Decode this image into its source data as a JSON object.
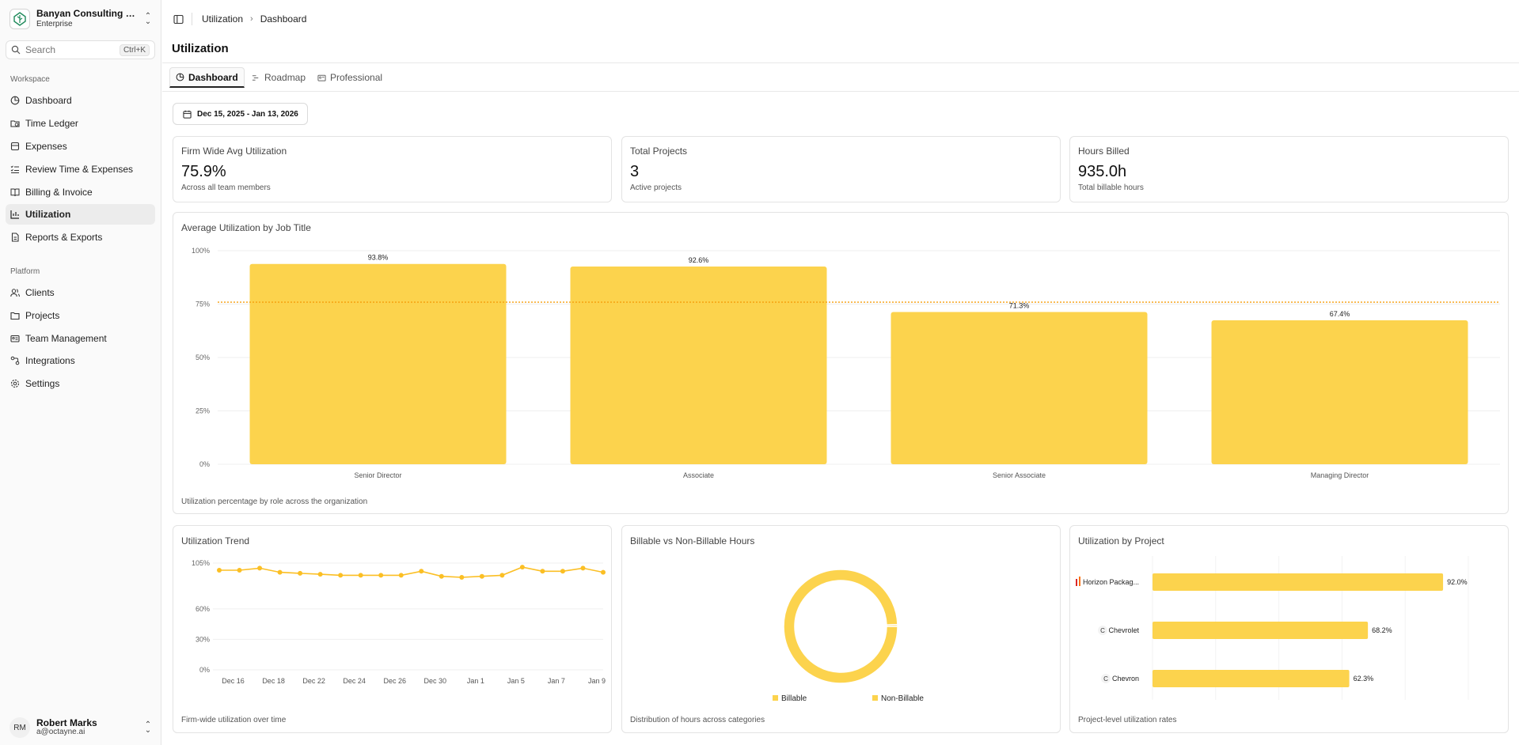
{
  "org": {
    "name": "Banyan Consulting Group",
    "plan": "Enterprise"
  },
  "search": {
    "placeholder": "Search",
    "shortcut": "Ctrl+K"
  },
  "sidebar": {
    "workspace_label": "Workspace",
    "workspace_items": [
      {
        "label": "Dashboard",
        "icon": "dashboard-icon"
      },
      {
        "label": "Time Ledger",
        "icon": "folder-clock-icon"
      },
      {
        "label": "Expenses",
        "icon": "receipt-icon"
      },
      {
        "label": "Review Time & Expenses",
        "icon": "list-check-icon"
      },
      {
        "label": "Billing & Invoice",
        "icon": "book-icon"
      },
      {
        "label": "Utilization",
        "icon": "bar-chart-icon",
        "active": true
      },
      {
        "label": "Reports & Exports",
        "icon": "file-icon"
      }
    ],
    "platform_label": "Platform",
    "platform_items": [
      {
        "label": "Clients",
        "icon": "users-icon"
      },
      {
        "label": "Projects",
        "icon": "folder-icon"
      },
      {
        "label": "Team Management",
        "icon": "id-card-icon"
      },
      {
        "label": "Integrations",
        "icon": "plug-icon"
      },
      {
        "label": "Settings",
        "icon": "gear-icon"
      }
    ]
  },
  "user": {
    "initials": "RM",
    "name": "Robert Marks",
    "email": "a@octayne.ai"
  },
  "breadcrumb": {
    "parent": "Utilization",
    "current": "Dashboard"
  },
  "page": {
    "title": "Utilization"
  },
  "tabs": [
    {
      "label": "Dashboard",
      "active": true
    },
    {
      "label": "Roadmap"
    },
    {
      "label": "Professional"
    }
  ],
  "date_range": "Dec 15, 2025 - Jan 13, 2026",
  "kpis": [
    {
      "title": "Firm Wide Avg Utilization",
      "value": "75.9%",
      "sub": "Across all team members"
    },
    {
      "title": "Total Projects",
      "value": "3",
      "sub": "Active projects"
    },
    {
      "title": "Hours Billed",
      "value": "935.0h",
      "sub": "Total billable hours"
    }
  ],
  "colors": {
    "bar": "#fcd34d",
    "line": "#fbbf24",
    "target_line": "#f59e0b",
    "grid": "#efefef"
  },
  "chart_data": [
    {
      "type": "bar",
      "title": "Average Utilization by Job Title",
      "footer": "Utilization percentage by role across the organization",
      "categories": [
        "Senior Director",
        "Associate",
        "Senior Associate",
        "Managing Director"
      ],
      "values": [
        93.8,
        92.6,
        71.3,
        67.4
      ],
      "value_labels": [
        "93.8%",
        "92.6%",
        "71.3%",
        "67.4%"
      ],
      "ylim": [
        0,
        100
      ],
      "yticks": [
        "0%",
        "25%",
        "50%",
        "75%",
        "100%"
      ],
      "reference_line": 75.9,
      "grid": true
    },
    {
      "type": "line",
      "title": "Utilization Trend",
      "footer": "Firm-wide utilization over time",
      "x_ticks": [
        "Dec 16",
        "Dec 18",
        "Dec 22",
        "Dec 24",
        "Dec 26",
        "Dec 30",
        "Jan 1",
        "Jan 5",
        "Jan 7",
        "Jan 9"
      ],
      "values": [
        98,
        98,
        100,
        96,
        95,
        94,
        93,
        93,
        93,
        93,
        97,
        92,
        91,
        92,
        93,
        101,
        97,
        97,
        100,
        96
      ],
      "ylim": [
        0,
        105
      ],
      "yticks": [
        "0%",
        "30%",
        "60%",
        "105%"
      ],
      "grid": true
    },
    {
      "type": "pie",
      "title": "Billable vs Non-Billable Hours",
      "footer": "Distribution of hours across categories",
      "slices": [
        {
          "name": "Billable",
          "value": 99.5
        },
        {
          "name": "Non-Billable",
          "value": 0.5
        }
      ]
    },
    {
      "type": "bar",
      "orientation": "horizontal",
      "title": "Utilization by Project",
      "footer": "Project-level utilization rates",
      "categories": [
        "Horizon Packag...",
        "Chevrolet",
        "Chevron"
      ],
      "category_badges": [
        "logo",
        "C",
        "C"
      ],
      "values": [
        92.0,
        68.2,
        62.3
      ],
      "value_labels": [
        "92.0%",
        "68.2%",
        "62.3%"
      ],
      "xlim": [
        0,
        100
      ]
    }
  ]
}
